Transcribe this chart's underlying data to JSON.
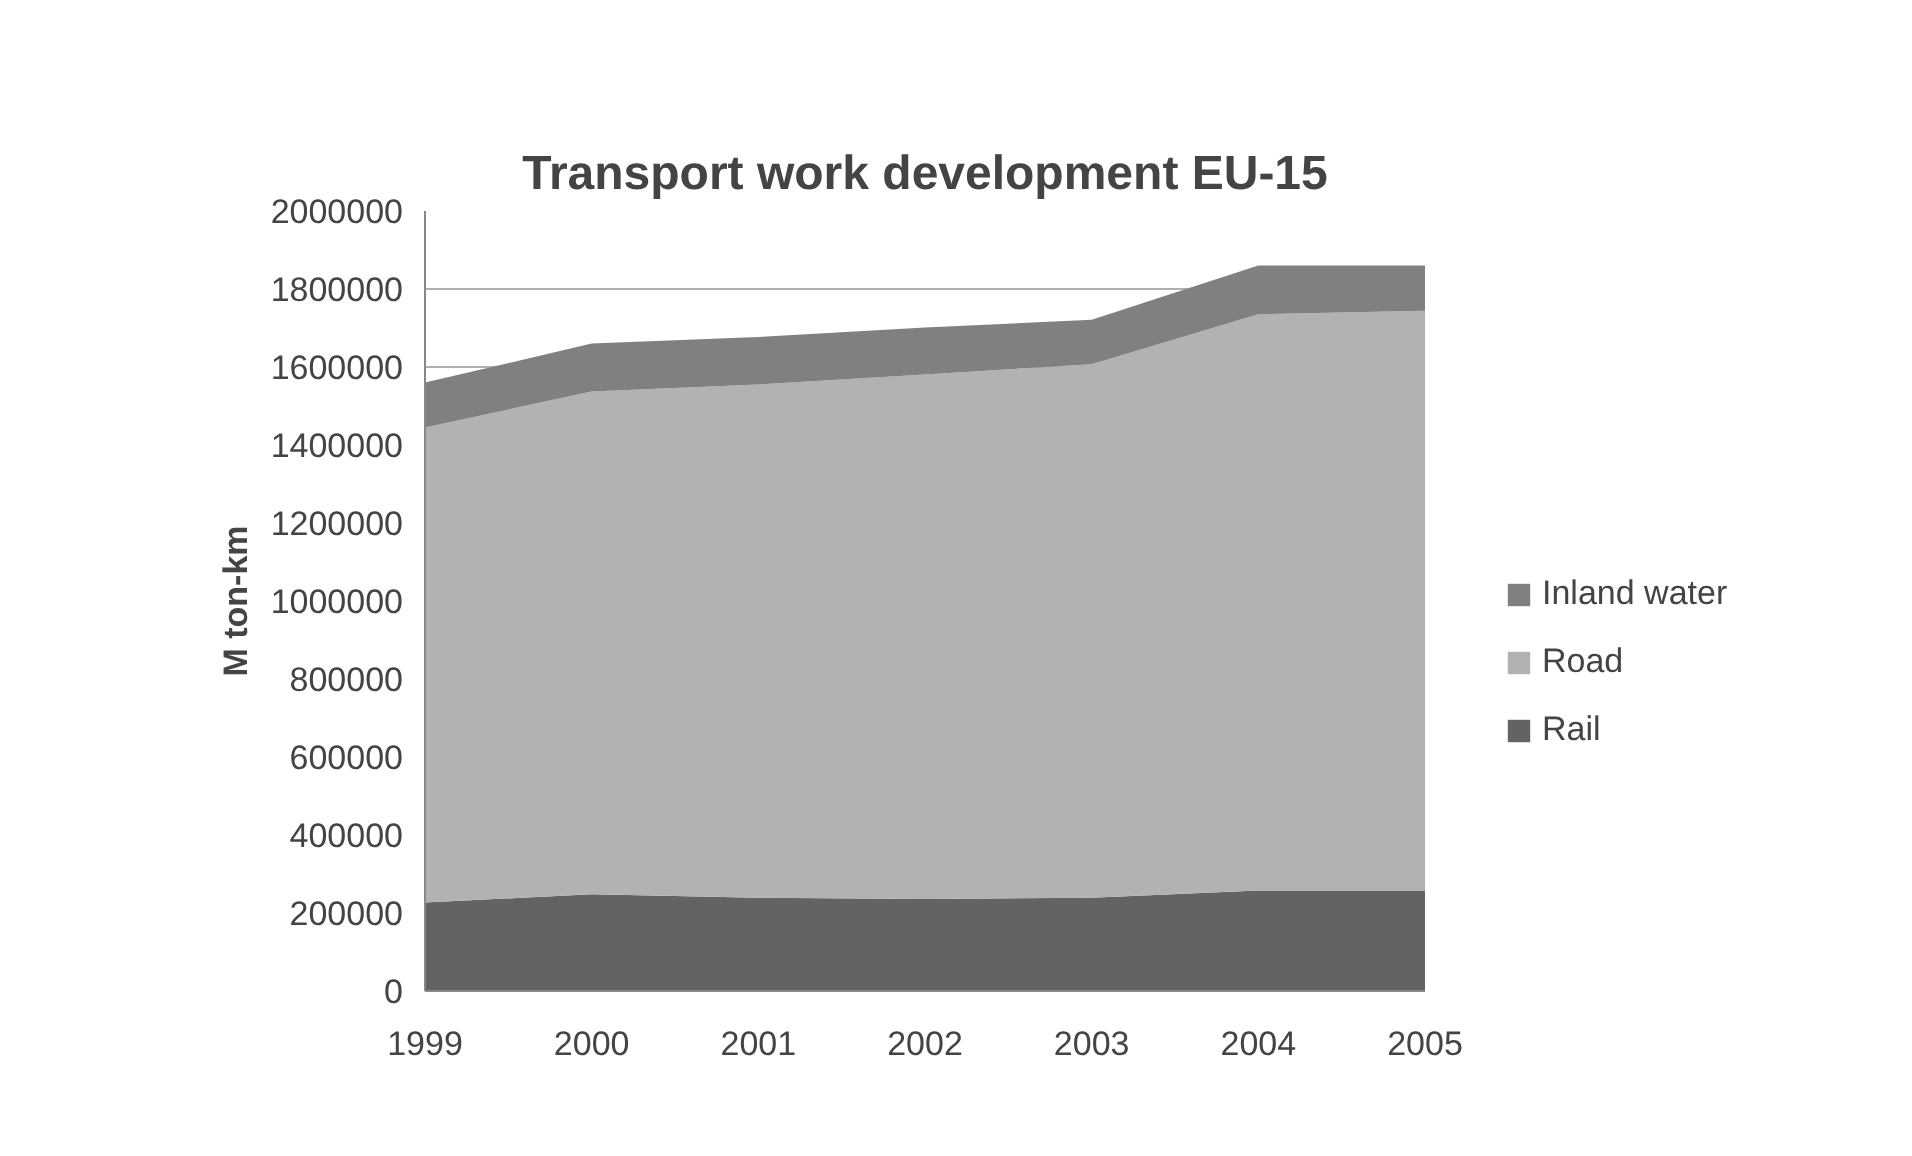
{
  "chart_data": {
    "type": "area",
    "title": "Transport work development EU-15",
    "ylabel": "M ton-km",
    "categories": [
      "1999",
      "2000",
      "2001",
      "2002",
      "2003",
      "2004",
      "2005"
    ],
    "stacked": true,
    "series": [
      {
        "name": "Rail",
        "color": "#636363",
        "values": [
          227000,
          248000,
          239000,
          236000,
          239000,
          258000,
          258000
        ]
      },
      {
        "name": "Road",
        "color": "#b2b2b2",
        "values": [
          1218000,
          1289000,
          1316000,
          1345000,
          1368000,
          1477000,
          1486000
        ]
      },
      {
        "name": "Inland water",
        "color": "#808080",
        "values": [
          115000,
          123000,
          122000,
          120000,
          114000,
          125000,
          116000
        ]
      }
    ],
    "ylim": [
      0,
      2000000
    ],
    "yticks": [
      0,
      200000,
      400000,
      600000,
      800000,
      1000000,
      1200000,
      1400000,
      1600000,
      1800000,
      2000000
    ],
    "grid": "y",
    "legend": "right"
  }
}
